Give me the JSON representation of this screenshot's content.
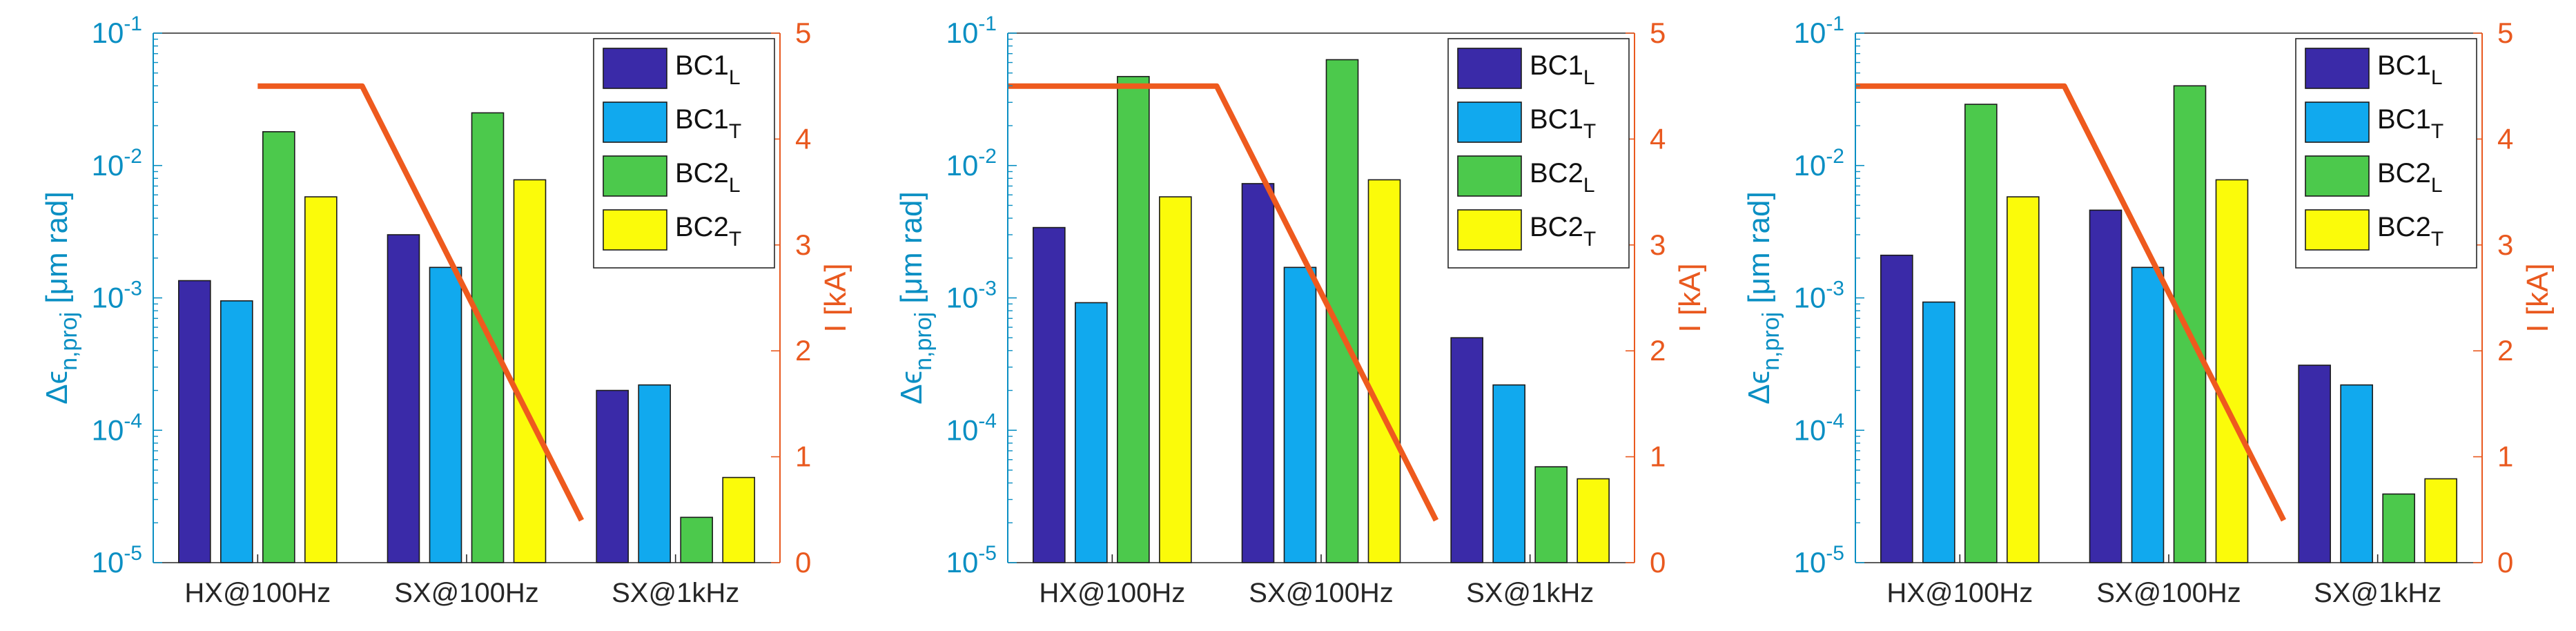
{
  "chart_data": [
    {
      "type": "bar",
      "categories": [
        "HX@100Hz",
        "SX@100Hz",
        "SX@1kHz"
      ],
      "ylabel": {
        "main": "Δϵ",
        "sub": "n,proj",
        "unit": "[μm rad]"
      },
      "y2label": "I [kA]",
      "yscale": "log",
      "ylim": [
        1e-05,
        0.1
      ],
      "y2lim": [
        0,
        5
      ],
      "yticks": [
        {
          "base": "10",
          "exp": "-5"
        },
        {
          "base": "10",
          "exp": "-4"
        },
        {
          "base": "10",
          "exp": "-3"
        },
        {
          "base": "10",
          "exp": "-2"
        },
        {
          "base": "10",
          "exp": "-1"
        }
      ],
      "y2ticks": [
        "0",
        "1",
        "2",
        "3",
        "4",
        "5"
      ],
      "series": [
        {
          "name": "BC1",
          "sub": "L",
          "color": "#3a2aa8",
          "values": [
            0.00135,
            0.003,
            0.0002
          ]
        },
        {
          "name": "BC1",
          "sub": "T",
          "color": "#11a9ee",
          "values": [
            0.00095,
            0.0017,
            0.00022
          ]
        },
        {
          "name": "BC2",
          "sub": "L",
          "color": "#4cc94c",
          "values": [
            0.018,
            0.025,
            2.2e-05
          ]
        },
        {
          "name": "BC2",
          "sub": "T",
          "color": "#fbfb0a",
          "values": [
            0.0058,
            0.0078,
            4.4e-05
          ]
        }
      ],
      "current_line": {
        "color": "#ee5a1e",
        "points": [
          [
            0.5,
            4.5
          ],
          [
            1.0,
            4.5
          ],
          [
            2.05,
            0.4
          ]
        ]
      },
      "legend_position": "top-right"
    },
    {
      "type": "bar",
      "categories": [
        "HX@100Hz",
        "SX@100Hz",
        "SX@1kHz"
      ],
      "ylabel": {
        "main": "Δϵ",
        "sub": "n,proj",
        "unit": "[μm rad]"
      },
      "y2label": "I [kA]",
      "yscale": "log",
      "ylim": [
        1e-05,
        0.1
      ],
      "y2lim": [
        0,
        5
      ],
      "yticks": [
        {
          "base": "10",
          "exp": "-5"
        },
        {
          "base": "10",
          "exp": "-4"
        },
        {
          "base": "10",
          "exp": "-3"
        },
        {
          "base": "10",
          "exp": "-2"
        },
        {
          "base": "10",
          "exp": "-1"
        }
      ],
      "y2ticks": [
        "0",
        "1",
        "2",
        "3",
        "4",
        "5"
      ],
      "series": [
        {
          "name": "BC1",
          "sub": "L",
          "color": "#3a2aa8",
          "values": [
            0.0034,
            0.0073,
            0.0005
          ]
        },
        {
          "name": "BC1",
          "sub": "T",
          "color": "#11a9ee",
          "values": [
            0.00092,
            0.0017,
            0.00022
          ]
        },
        {
          "name": "BC2",
          "sub": "L",
          "color": "#4cc94c",
          "values": [
            0.047,
            0.063,
            5.3e-05
          ]
        },
        {
          "name": "BC2",
          "sub": "T",
          "color": "#fbfb0a",
          "values": [
            0.0058,
            0.0078,
            4.3e-05
          ]
        }
      ],
      "current_line": {
        "color": "#ee5a1e",
        "points": [
          [
            0.0,
            4.5
          ],
          [
            1.0,
            4.5
          ],
          [
            2.05,
            0.4
          ]
        ]
      },
      "legend_position": "top-right"
    },
    {
      "type": "bar",
      "categories": [
        "HX@100Hz",
        "SX@100Hz",
        "SX@1kHz"
      ],
      "ylabel": {
        "main": "Δϵ",
        "sub": "n,proj",
        "unit": "[μm rad]"
      },
      "y2label": "I [kA]",
      "yscale": "log",
      "ylim": [
        1e-05,
        0.1
      ],
      "y2lim": [
        0,
        5
      ],
      "yticks": [
        {
          "base": "10",
          "exp": "-5"
        },
        {
          "base": "10",
          "exp": "-4"
        },
        {
          "base": "10",
          "exp": "-3"
        },
        {
          "base": "10",
          "exp": "-2"
        },
        {
          "base": "10",
          "exp": "-1"
        }
      ],
      "y2ticks": [
        "0",
        "1",
        "2",
        "3",
        "4",
        "5"
      ],
      "series": [
        {
          "name": "BC1",
          "sub": "L",
          "color": "#3a2aa8",
          "values": [
            0.0021,
            0.0046,
            0.00031
          ]
        },
        {
          "name": "BC1",
          "sub": "T",
          "color": "#11a9ee",
          "values": [
            0.00093,
            0.0017,
            0.00022
          ]
        },
        {
          "name": "BC2",
          "sub": "L",
          "color": "#4cc94c",
          "values": [
            0.029,
            0.04,
            3.3e-05
          ]
        },
        {
          "name": "BC2",
          "sub": "T",
          "color": "#fbfb0a",
          "values": [
            0.0058,
            0.0078,
            4.3e-05
          ]
        }
      ],
      "current_line": {
        "color": "#ee5a1e",
        "points": [
          [
            0.0,
            4.5
          ],
          [
            1.0,
            4.5
          ],
          [
            2.05,
            0.4
          ]
        ]
      },
      "legend_position": "top-right"
    }
  ]
}
